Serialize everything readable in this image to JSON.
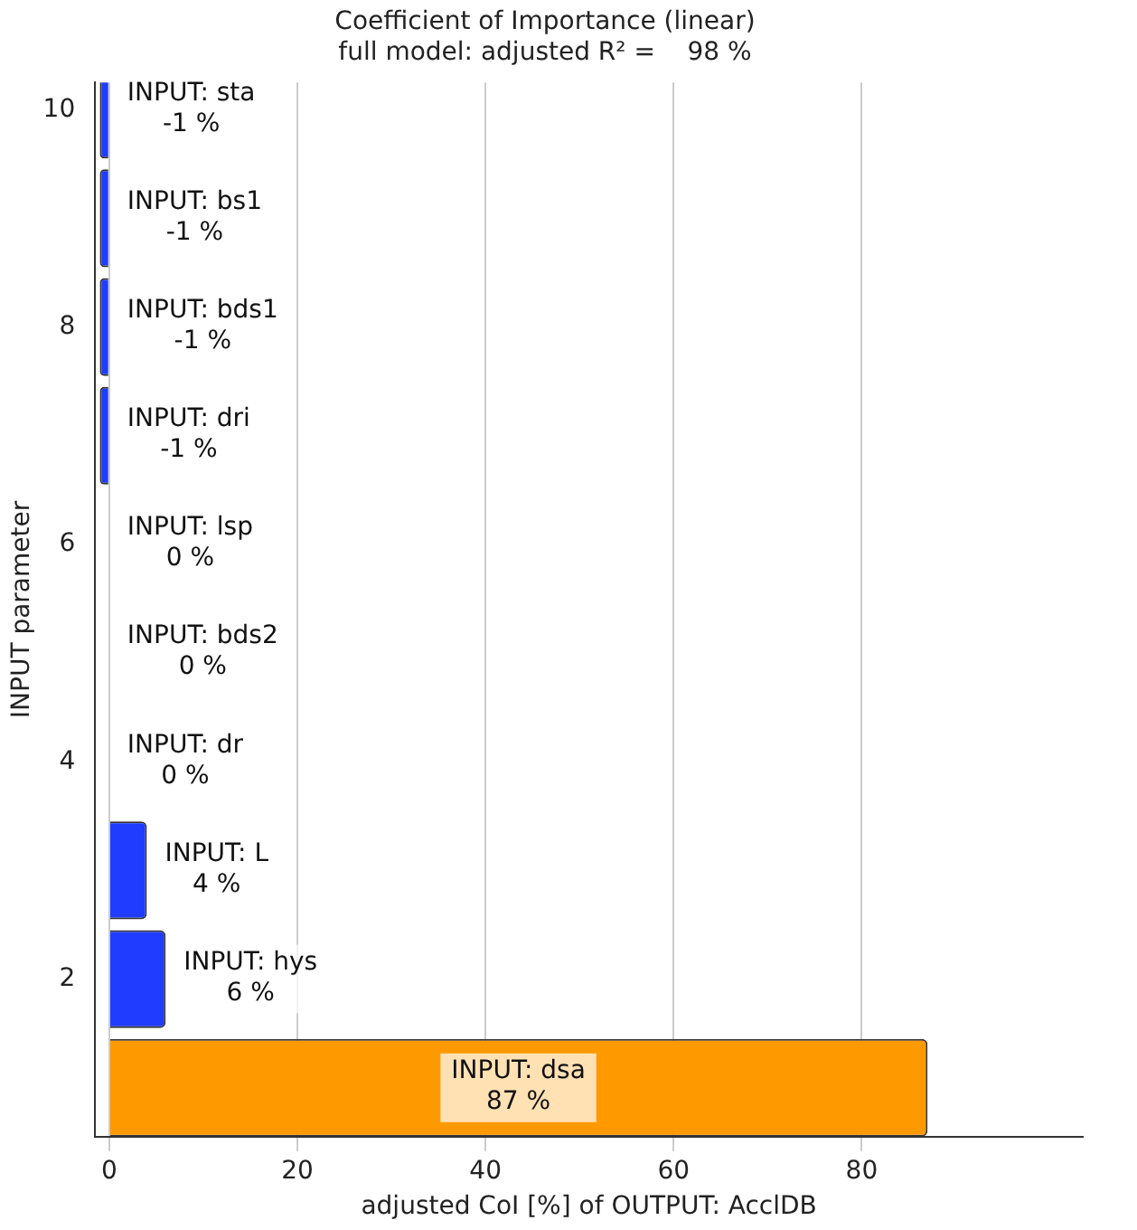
{
  "chart_data": {
    "type": "bar",
    "orientation": "horizontal",
    "title": "Coefficient of Importance (linear)",
    "subtitle": "full model: adjusted R² =    98 %",
    "xlabel": "adjusted CoI [%] of OUTPUT: AcclDB",
    "ylabel": "INPUT parameter",
    "x": [
      1,
      2,
      3,
      4,
      5,
      6,
      7,
      8,
      9,
      10
    ],
    "values": [
      87,
      6,
      4,
      0,
      0,
      0,
      -1,
      -1,
      -1,
      -1
    ],
    "colors": [
      "#ff9900",
      "#1f3cff",
      "#1f3cff",
      "#1f3cff",
      "#1f3cff",
      "#1f3cff",
      "#1f3cff",
      "#1f3cff",
      "#1f3cff",
      "#1f3cff"
    ],
    "value_labels": [
      "INPUT: dsa\n87 %",
      "INPUT: hys\n6 %",
      "INPUT: L\n4 %",
      "INPUT: dr\n0 %",
      "INPUT: bds2\n0 %",
      "INPUT: lsp\n0 %",
      "INPUT: dri\n-1 %",
      "INPUT: bds1\n-1 %",
      "INPUT: bs1\n-1 %",
      "INPUT: sta\n-1 %"
    ],
    "xlim": [
      -1.5,
      103.5
    ],
    "xticks": [
      0,
      20,
      40,
      60,
      80
    ],
    "ylim": [
      0.55,
      10.25
    ],
    "yticks": [
      2,
      4,
      6,
      8,
      10
    ],
    "grid": "x",
    "legend": false
  }
}
